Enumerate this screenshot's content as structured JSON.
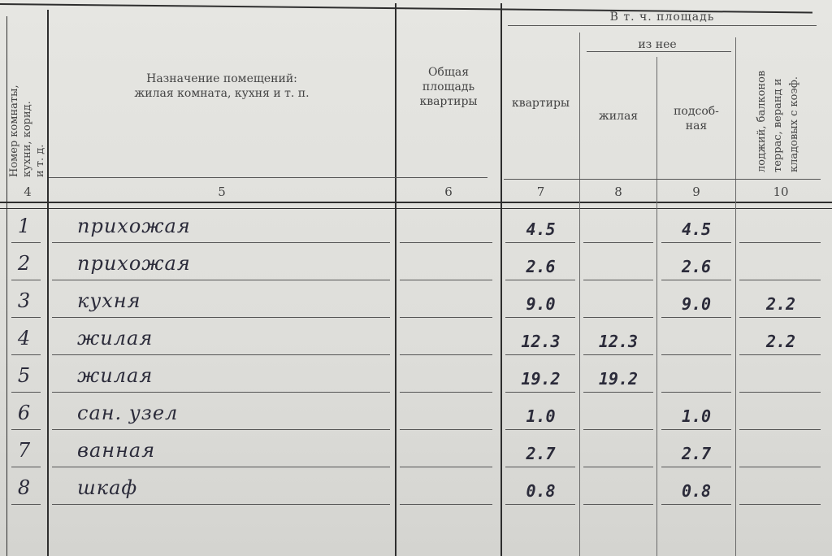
{
  "header": {
    "col4": "Номер комнаты, кухни, корид. и т. д.",
    "col4_lines": [
      "Номер комнаты,",
      "кухни, корид.",
      "и т. д."
    ],
    "col5_line1": "Назначение помещений:",
    "col5_line2": "жилая комната, кухня и т. п.",
    "col6_lines": [
      "Общая",
      "площадь",
      "квартиры"
    ],
    "group_title": "В т. ч. площадь",
    "subgroup_title": "из нее",
    "col7": "квартиры",
    "col8": "жилая",
    "col9_lines": [
      "подсоб-",
      "ная"
    ],
    "col10_lines": [
      "лоджий, балконов",
      "террас, веранд и",
      "кладовых с коэф."
    ],
    "column_numbers": [
      "4",
      "5",
      "6",
      "7",
      "8",
      "9",
      "10"
    ]
  },
  "rows": [
    {
      "no": "1",
      "name": "прихожая",
      "total": "",
      "apartment": "4.5",
      "living": "",
      "auxiliary": "4.5",
      "loggia": ""
    },
    {
      "no": "2",
      "name": "прихожая",
      "total": "",
      "apartment": "2.6",
      "living": "",
      "auxiliary": "2.6",
      "loggia": ""
    },
    {
      "no": "3",
      "name": "кухня",
      "total": "",
      "apartment": "9.0",
      "living": "",
      "auxiliary": "9.0",
      "loggia": "2.2"
    },
    {
      "no": "4",
      "name": "жилая",
      "total": "",
      "apartment": "12.3",
      "living": "12.3",
      "auxiliary": "",
      "loggia": "2.2"
    },
    {
      "no": "5",
      "name": "жилая",
      "total": "",
      "apartment": "19.2",
      "living": "19.2",
      "auxiliary": "",
      "loggia": ""
    },
    {
      "no": "6",
      "name": "сан. узел",
      "total": "",
      "apartment": "1.0",
      "living": "",
      "auxiliary": "1.0",
      "loggia": ""
    },
    {
      "no": "7",
      "name": "ванная",
      "total": "",
      "apartment": "2.7",
      "living": "",
      "auxiliary": "2.7",
      "loggia": ""
    },
    {
      "no": "8",
      "name": "шкаф",
      "total": "",
      "apartment": "0.8",
      "living": "",
      "auxiliary": "0.8",
      "loggia": ""
    }
  ]
}
